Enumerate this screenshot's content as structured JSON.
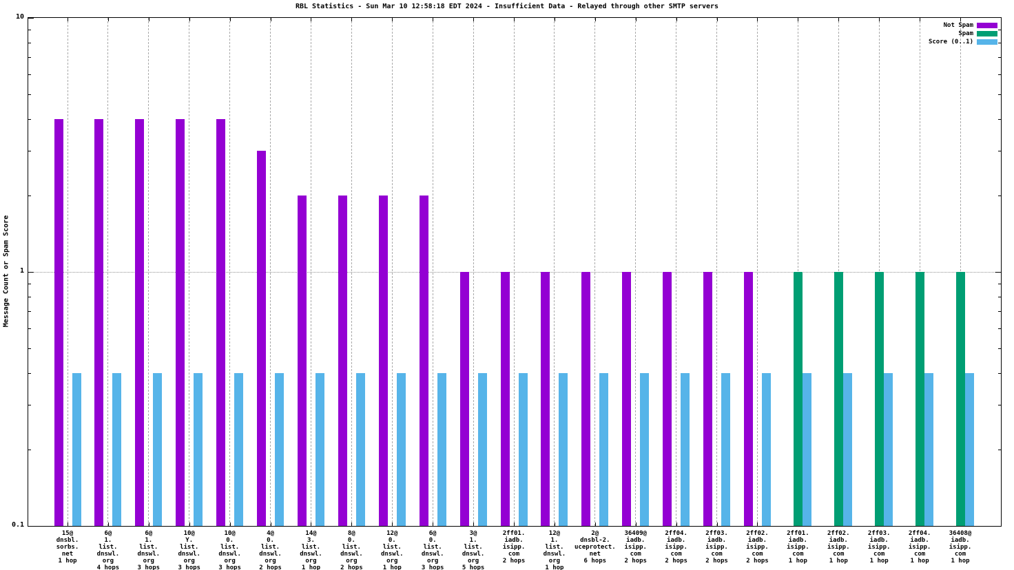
{
  "title": "RBL Statistics - Sun Mar 10 12:58:18 EDT 2024 - Insufficient Data - Relayed through other SMTP servers",
  "axes": {
    "ylabel": "Message Count or Spam Score",
    "yticks": [
      "10",
      "1",
      "0.1"
    ]
  },
  "legend": [
    {
      "label": "Not Spam",
      "color": "#9400D3"
    },
    {
      "label": "Spam",
      "color": "#009E73"
    },
    {
      "label": "Score (0..1)",
      "color": "#56B4E9"
    }
  ],
  "colors": {
    "not_spam": "#9400D3",
    "spam": "#009E73",
    "score": "#56B4E9",
    "grid": "#a9a9a9"
  },
  "chart_data": {
    "type": "bar",
    "title": "RBL Statistics - Sun Mar 10 12:58:18 EDT 2024 - Insufficient Data - Relayed through other SMTP servers",
    "xlabel": "",
    "ylabel": "Message Count or Spam Score",
    "yscale": "log",
    "ylim": [
      0.1,
      10
    ],
    "grid": "xtics dashed, y gridline at 1",
    "legend_position": "top-right inside",
    "categories": [
      "15@ dnsbl.sorbs.net 1 hop",
      "6@ 1.list.dnswl.org 4 hops",
      "6@ 1.list.dnswl.org 3 hops",
      "10@ Y.list.dnswl.org 3 hops",
      "10@ 0.list.dnswl.org 3 hops",
      "4@ 0.list.dnswl.org 2 hops",
      "14@ 3.list.dnswl.org 1 hop",
      "8@ 0.list.dnswl.org 2 hops",
      "12@ 0.list.dnswl.org 1 hop",
      "6@ 0.list.dnswl.org 3 hops",
      "3@ 1.list.dnswl.org 5 hops",
      "2ff01.iadb.isipp.com 2 hops",
      "12@ 1.list.dnswl.org 1 hop",
      "2@ dnsbl-2.uceprotect.net 6 hops",
      "36409@ iadb.isipp.com 2 hops",
      "2ff04.iadb.isipp.com 2 hops",
      "2ff03.iadb.isipp.com 2 hops",
      "2ff02.iadb.isipp.com 2 hops",
      "2ff01.iadb.isipp.com 1 hop",
      "2ff02.iadb.isipp.com 1 hop",
      "2ff03.iadb.isipp.com 1 hop",
      "2ff04.iadb.isipp.com 1 hop",
      "36408@ iadb.isipp.com 1 hop"
    ],
    "category_label_lines": [
      [
        "15@",
        "dnsbl.",
        "sorbs.",
        "net",
        "1 hop"
      ],
      [
        "6@",
        "1.",
        "list.",
        "dnswl.",
        "org",
        "4 hops"
      ],
      [
        "6@",
        "1.",
        "list.",
        "dnswl.",
        "org",
        "3 hops"
      ],
      [
        "10@",
        "Y.",
        "list.",
        "dnswl.",
        "org",
        "3 hops"
      ],
      [
        "10@",
        "0.",
        "list.",
        "dnswl.",
        "org",
        "3 hops"
      ],
      [
        "4@",
        "0.",
        "list.",
        "dnswl.",
        "org",
        "2 hops"
      ],
      [
        "14@",
        "3.",
        "list.",
        "dnswl.",
        "org",
        "1 hop"
      ],
      [
        "8@",
        "0.",
        "list.",
        "dnswl.",
        "org",
        "2 hops"
      ],
      [
        "12@",
        "0.",
        "list.",
        "dnswl.",
        "org",
        "1 hop"
      ],
      [
        "6@",
        "0.",
        "list.",
        "dnswl.",
        "org",
        "3 hops"
      ],
      [
        "3@",
        "1.",
        "list.",
        "dnswl.",
        "org",
        "5 hops"
      ],
      [
        "2ff01.",
        "iadb.",
        "isipp.",
        "com",
        "2 hops"
      ],
      [
        "12@",
        "1.",
        "list.",
        "dnswl.",
        "org",
        "1 hop"
      ],
      [
        "2@",
        "dnsbl-2.",
        "uceprotect.",
        "net",
        "6 hops"
      ],
      [
        "36409@",
        "iadb.",
        "isipp.",
        "com",
        "2 hops"
      ],
      [
        "2ff04.",
        "iadb.",
        "isipp.",
        "com",
        "2 hops"
      ],
      [
        "2ff03.",
        "iadb.",
        "isipp.",
        "com",
        "2 hops"
      ],
      [
        "2ff02.",
        "iadb.",
        "isipp.",
        "com",
        "2 hops"
      ],
      [
        "2ff01.",
        "iadb.",
        "isipp.",
        "com",
        "1 hop"
      ],
      [
        "2ff02.",
        "iadb.",
        "isipp.",
        "com",
        "1 hop"
      ],
      [
        "2ff03.",
        "iadb.",
        "isipp.",
        "com",
        "1 hop"
      ],
      [
        "2ff04.",
        "iadb.",
        "isipp.",
        "com",
        "1 hop"
      ],
      [
        "36408@",
        "iadb.",
        "isipp.",
        "com",
        "1 hop"
      ]
    ],
    "series": [
      {
        "name": "Not Spam",
        "color": "#9400D3",
        "values": [
          4,
          4,
          4,
          4,
          4,
          3,
          2,
          2,
          2,
          2,
          1,
          1,
          1,
          1,
          1,
          1,
          1,
          1,
          0,
          0,
          0,
          0,
          0
        ]
      },
      {
        "name": "Spam",
        "color": "#009E73",
        "values": [
          0,
          0,
          0,
          0,
          0,
          0,
          0,
          0,
          0,
          0,
          0,
          0,
          0,
          0,
          0,
          0,
          0,
          0,
          1,
          1,
          1,
          1,
          1
        ]
      },
      {
        "name": "Score (0..1)",
        "color": "#56B4E9",
        "values": [
          0.4,
          0.4,
          0.4,
          0.4,
          0.4,
          0.4,
          0.4,
          0.4,
          0.4,
          0.4,
          0.4,
          0.4,
          0.4,
          0.4,
          0.4,
          0.4,
          0.4,
          0.4,
          0.4,
          0.4,
          0.4,
          0.4,
          0.4
        ]
      }
    ]
  }
}
